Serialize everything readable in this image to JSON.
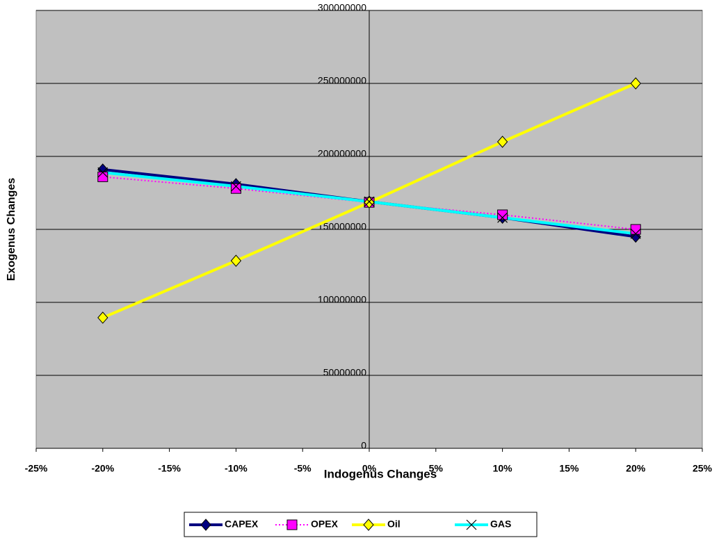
{
  "chart_data": {
    "type": "line",
    "x_label": "Indogenus Changes",
    "y_label": "Exogenus Changes",
    "x": [
      -20,
      -10,
      0,
      10,
      20
    ],
    "series": [
      {
        "name": "CAPEX",
        "color": "#000080",
        "marker": "diamond",
        "marker_color": "#000080",
        "line_style": "solid",
        "values": [
          191000000,
          181000000,
          169000000,
          158000000,
          145000000
        ]
      },
      {
        "name": "OPEX",
        "color": "#ff00ff",
        "marker": "square",
        "marker_color": "#ff00ff",
        "line_style": "dotted",
        "values": [
          186000000,
          178000000,
          168500000,
          160000000,
          150000000
        ]
      },
      {
        "name": "Oil",
        "color": "#ffff00",
        "marker": "diamond",
        "marker_color": "#ffff00",
        "line_style": "solid",
        "values": [
          89500000,
          128500000,
          168500000,
          210000000,
          250000000
        ]
      },
      {
        "name": "GAS",
        "color": "#00ffff",
        "marker": "x",
        "marker_color": "#000000",
        "line_style": "solid",
        "values": [
          189000000,
          179500000,
          169000000,
          158000000,
          147000000
        ]
      }
    ],
    "xlim": [
      -25,
      25
    ],
    "xticks": [
      {
        "value": -25,
        "label": "-25%"
      },
      {
        "value": -20,
        "label": "-20%"
      },
      {
        "value": -15,
        "label": "-15%"
      },
      {
        "value": -10,
        "label": "-10%"
      },
      {
        "value": -5,
        "label": "-5%"
      },
      {
        "value": 0,
        "label": "0%"
      },
      {
        "value": 5,
        "label": "5%"
      },
      {
        "value": 10,
        "label": "10%"
      },
      {
        "value": 15,
        "label": "15%"
      },
      {
        "value": 20,
        "label": "20%"
      },
      {
        "value": 25,
        "label": "25%"
      }
    ],
    "ylim": [
      0,
      300000000
    ],
    "yticks": [
      0,
      50000000,
      100000000,
      150000000,
      200000000,
      250000000,
      300000000
    ],
    "grid": true,
    "legend": "bottom",
    "plot_background": "#c0c0c0"
  }
}
